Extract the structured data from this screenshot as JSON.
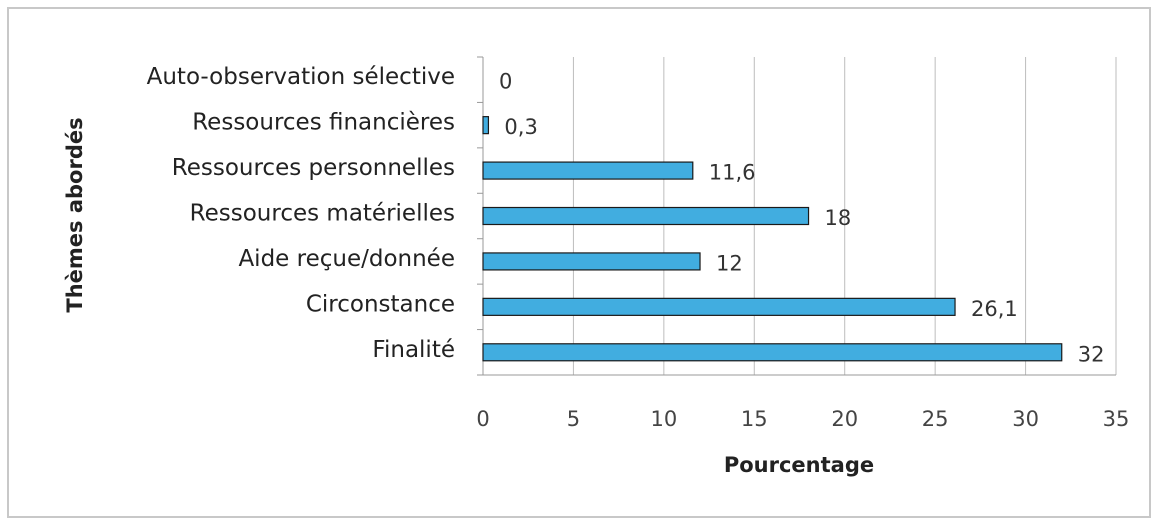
{
  "chart_data": {
    "type": "bar",
    "orientation": "horizontal",
    "x_label": "Pourcentage",
    "y_label": "Thèmes abordés",
    "categories": [
      "Auto-observation sélective",
      "Ressources financières",
      "Ressources personnelles",
      "Ressources matérielles",
      "Aide reçue/donnée",
      "Circonstance",
      "Finalité"
    ],
    "values": [
      0,
      0.3,
      11.6,
      18,
      12,
      26.1,
      32
    ],
    "value_labels": [
      "0",
      "0,3",
      "11,6",
      "18",
      "12",
      "26,1",
      "32"
    ],
    "color": "#41ade0",
    "xlim": [
      0,
      35
    ],
    "xticks": [
      0,
      5,
      10,
      15,
      20,
      25,
      30,
      35
    ],
    "grid": true
  }
}
